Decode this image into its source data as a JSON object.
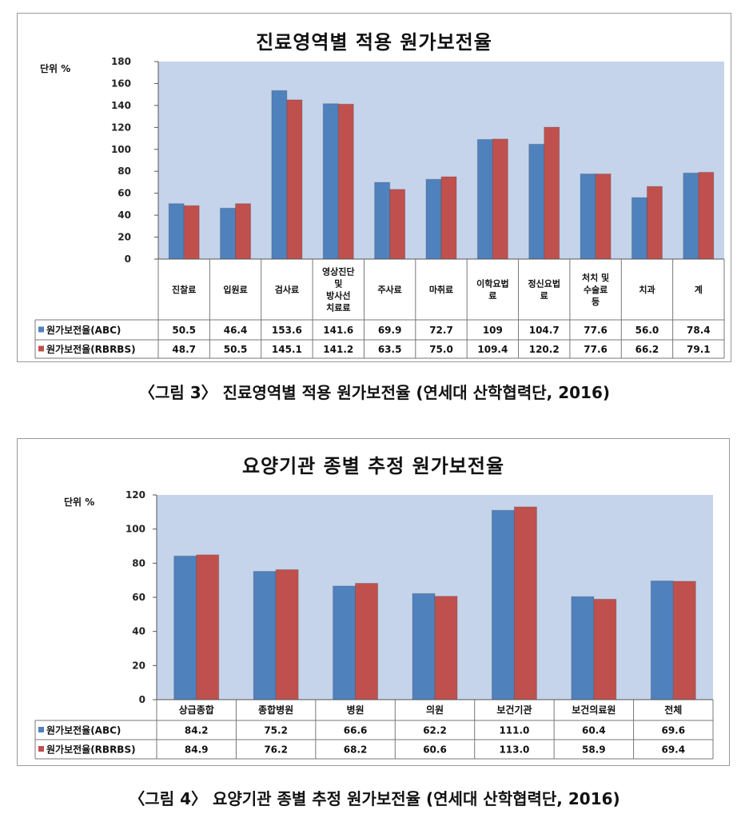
{
  "figures": [
    {
      "title": "진료영역별 적용 원가보전율",
      "unit_label": "단위 %",
      "caption": "〈그림 3〉 진료영역별 적용 원가보전율 (연세대 산학협력단, 2016)"
    },
    {
      "title": "요양기관 종별 추정 원가보전율",
      "unit_label": "단위 %",
      "caption": "〈그림 4〉 요양기관 종별 추정 원가보전율 (연세대 산학협력단, 2016)"
    }
  ],
  "colors": {
    "abc": "#4f81bd",
    "rbrbs": "#c0504d",
    "plot_bg": "#c5d4ea",
    "grid": "#9eb1cf"
  },
  "chart_data": [
    {
      "type": "bar",
      "title": "진료영역별 적용 원가보전율",
      "ylabel": "단위 %",
      "ylim": [
        0,
        180
      ],
      "yticks": [
        0,
        20,
        40,
        60,
        80,
        100,
        120,
        140,
        160,
        180
      ],
      "categories": [
        "진찰료",
        "입원료",
        "검사료",
        "영상진단\n및\n방사선\n치료료",
        "주사료",
        "마취료",
        "이학요법\n료",
        "정신요법\n료",
        "처치 및\n수술료\n등",
        "치과",
        "계"
      ],
      "series": [
        {
          "name": "원가보전율(ABC)",
          "values": [
            50.5,
            46.4,
            153.6,
            141.6,
            69.9,
            72.7,
            109,
            104.7,
            77.6,
            56.0,
            78.4
          ],
          "labels": [
            "50.5",
            "46.4",
            "153.6",
            "141.6",
            "69.9",
            "72.7",
            "109",
            "104.7",
            "77.6",
            "56.0",
            "78.4"
          ]
        },
        {
          "name": "원가보전율(RBRBS)",
          "values": [
            48.7,
            50.5,
            145.1,
            141.2,
            63.5,
            75.0,
            109.4,
            120.2,
            77.6,
            66.2,
            79.1
          ],
          "labels": [
            "48.7",
            "50.5",
            "145.1",
            "141.2",
            "63.5",
            "75.0",
            "109.4",
            "120.2",
            "77.6",
            "66.2",
            "79.1"
          ]
        }
      ],
      "grid": false,
      "legend": "data-table"
    },
    {
      "type": "bar",
      "title": "요양기관 종별 추정 원가보전율",
      "ylabel": "단위 %",
      "ylim": [
        0,
        120
      ],
      "yticks": [
        0,
        20,
        40,
        60,
        80,
        100,
        120
      ],
      "categories": [
        "상급종합",
        "종합병원",
        "병원",
        "의원",
        "보건기관",
        "보건의료원",
        "전체"
      ],
      "series": [
        {
          "name": "원가보전율(ABC)",
          "values": [
            84.2,
            75.2,
            66.6,
            62.2,
            111.0,
            60.4,
            69.6
          ],
          "labels": [
            "84.2",
            "75.2",
            "66.6",
            "62.2",
            "111.0",
            "60.4",
            "69.6"
          ]
        },
        {
          "name": "원가보전율(RBRBS)",
          "values": [
            84.9,
            76.2,
            68.2,
            60.6,
            113.0,
            58.9,
            69.4
          ],
          "labels": [
            "84.9",
            "76.2",
            "68.2",
            "60.6",
            "113.0",
            "58.9",
            "69.4"
          ]
        }
      ],
      "grid": false,
      "legend": "data-table"
    }
  ]
}
